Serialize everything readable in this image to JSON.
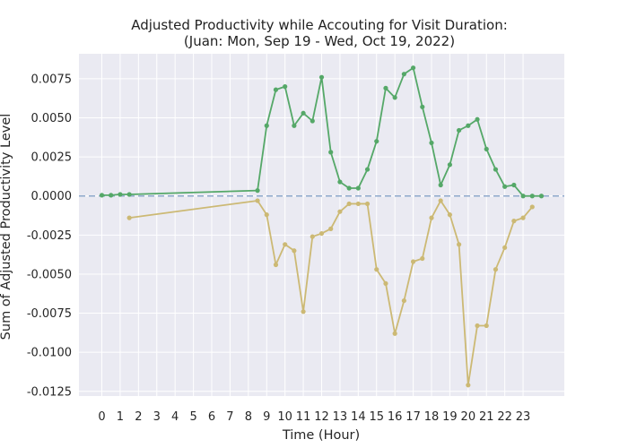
{
  "chart_data": {
    "type": "line",
    "title": "Adjusted Productivity while Accouting for Visit Duration:",
    "subtitle": "(Juan: Mon, Sep 19 - Wed, Oct 19, 2022)",
    "xlabel": "Time (Hour)",
    "ylabel": "Sum of Adjusted Productivity Level",
    "xlim": [
      -1.25,
      25.25
    ],
    "ylim": [
      -0.0128,
      0.0091
    ],
    "x_ticks": [
      "0",
      "1",
      "2",
      "3",
      "4",
      "5",
      "6",
      "7",
      "8",
      "9",
      "10",
      "11",
      "12",
      "13",
      "14",
      "15",
      "16",
      "17",
      "18",
      "19",
      "20",
      "21",
      "22",
      "23"
    ],
    "y_ticks": [
      "0.0075",
      "0.0050",
      "0.0025",
      "0.0000",
      "-0.0025",
      "-0.0050",
      "-0.0075",
      "-0.0100",
      "-0.0125"
    ],
    "grid": true,
    "reference_line": {
      "y": 0.0,
      "style": "dashed",
      "color": "#8fa9cc"
    },
    "colors": {
      "background": "#eaeaf2",
      "grid": "#ffffff"
    },
    "series": [
      {
        "color": "#55a868",
        "points": [
          [
            0.0,
            5e-05
          ],
          [
            0.5,
            5e-05
          ],
          [
            1.0,
            0.0001
          ],
          [
            1.5,
            0.0001
          ],
          [
            8.5,
            0.00035
          ],
          [
            9.0,
            0.0045
          ],
          [
            9.5,
            0.0068
          ],
          [
            10.0,
            0.007
          ],
          [
            10.5,
            0.0045
          ],
          [
            11.0,
            0.0053
          ],
          [
            11.5,
            0.0048
          ],
          [
            12.0,
            0.0076
          ],
          [
            12.5,
            0.0028
          ],
          [
            13.0,
            0.0009
          ],
          [
            13.5,
            0.0005
          ],
          [
            14.0,
            0.0005
          ],
          [
            14.5,
            0.0017
          ],
          [
            15.0,
            0.0035
          ],
          [
            15.5,
            0.0069
          ],
          [
            16.0,
            0.0063
          ],
          [
            16.5,
            0.0078
          ],
          [
            17.0,
            0.0082
          ],
          [
            17.5,
            0.0057
          ],
          [
            18.0,
            0.0034
          ],
          [
            18.5,
            0.0007
          ],
          [
            19.0,
            0.002
          ],
          [
            19.5,
            0.0042
          ],
          [
            20.0,
            0.0045
          ],
          [
            20.5,
            0.0049
          ],
          [
            21.0,
            0.003
          ],
          [
            21.5,
            0.0017
          ],
          [
            22.0,
            0.0006
          ],
          [
            22.5,
            0.0007
          ],
          [
            23.0,
            0.0
          ],
          [
            23.5,
            0.0
          ],
          [
            24.0,
            0.0
          ]
        ]
      },
      {
        "color": "#ccb974",
        "points": [
          [
            1.5,
            -0.0014
          ],
          [
            8.5,
            -0.0003
          ],
          [
            9.0,
            -0.0012
          ],
          [
            9.5,
            -0.0044
          ],
          [
            10.0,
            -0.0031
          ],
          [
            10.5,
            -0.0035
          ],
          [
            11.0,
            -0.0074
          ],
          [
            11.5,
            -0.0026
          ],
          [
            12.0,
            -0.0024
          ],
          [
            12.5,
            -0.0021
          ],
          [
            13.0,
            -0.001
          ],
          [
            13.5,
            -0.0005
          ],
          [
            14.0,
            -0.0005
          ],
          [
            14.5,
            -0.0005
          ],
          [
            15.0,
            -0.0047
          ],
          [
            15.5,
            -0.0056
          ],
          [
            16.0,
            -0.0088
          ],
          [
            16.5,
            -0.0067
          ],
          [
            17.0,
            -0.0042
          ],
          [
            17.5,
            -0.004
          ],
          [
            18.0,
            -0.0014
          ],
          [
            18.5,
            -0.0003
          ],
          [
            19.0,
            -0.0012
          ],
          [
            19.5,
            -0.0031
          ],
          [
            20.0,
            -0.0121
          ],
          [
            20.5,
            -0.0083
          ],
          [
            21.0,
            -0.0083
          ],
          [
            21.5,
            -0.0047
          ],
          [
            22.0,
            -0.0033
          ],
          [
            22.5,
            -0.0016
          ],
          [
            23.0,
            -0.0014
          ],
          [
            23.5,
            -0.0007
          ]
        ]
      }
    ]
  }
}
